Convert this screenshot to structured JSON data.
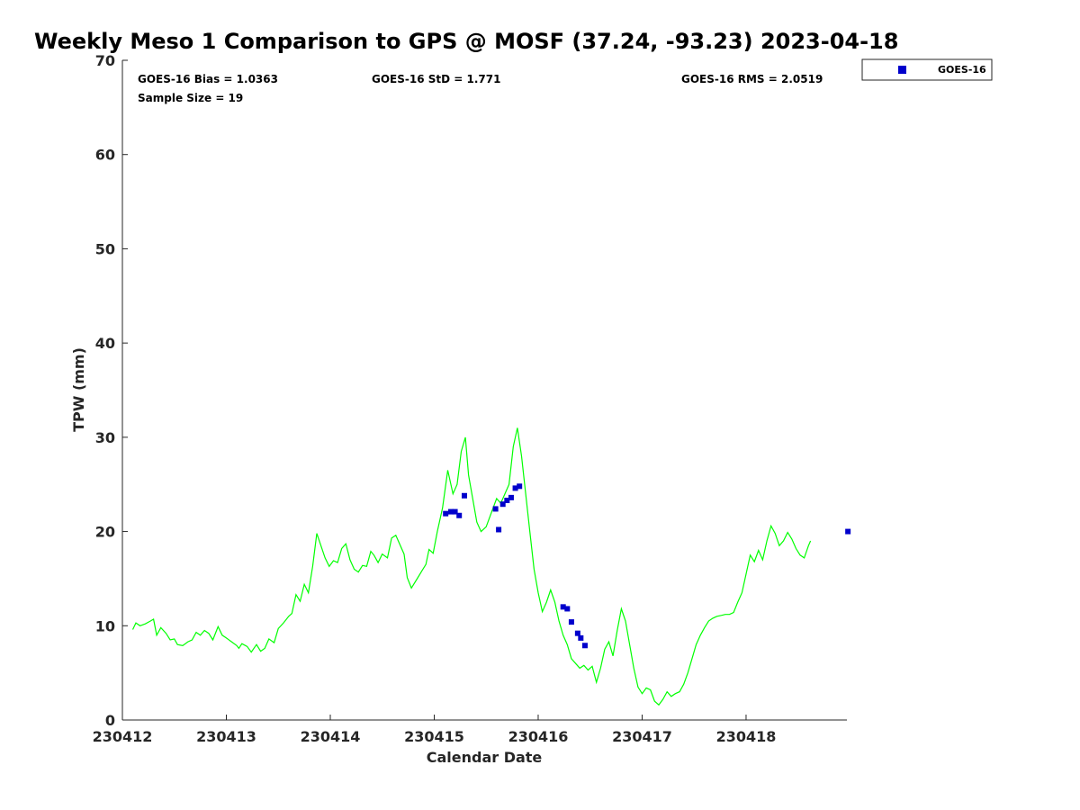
{
  "chart_data": {
    "type": "scatter",
    "title": "Weekly Meso 1 Comparison to GPS @ MOSF (37.24, -93.23) 2023-04-18",
    "xlabel": "Calendar Date",
    "ylabel": "TPW (mm)",
    "xlim": [
      0,
      6.97
    ],
    "ylim": [
      0,
      70
    ],
    "x_ticks": [
      {
        "value": 0,
        "label": "230412"
      },
      {
        "value": 1,
        "label": "230413"
      },
      {
        "value": 2,
        "label": "230414"
      },
      {
        "value": 3,
        "label": "230415"
      },
      {
        "value": 4,
        "label": "230416"
      },
      {
        "value": 5,
        "label": "230417"
      },
      {
        "value": 6,
        "label": "230418"
      }
    ],
    "y_ticks": [
      0,
      10,
      20,
      30,
      40,
      50,
      60,
      70
    ],
    "stats": {
      "bias": "GOES-16 Bias = 1.0363",
      "std": "GOES-16 StD = 1.771",
      "rms": "GOES-16 RMS = 2.0519",
      "sample_size": "Sample Size = 19"
    },
    "legend": {
      "position": "top-right",
      "entries": [
        "GOES-16"
      ]
    },
    "colors": {
      "gps_line": "#00ff00",
      "goes16_marker": "#0000cc"
    },
    "series": [
      {
        "kind": "line",
        "points": [
          [
            0.1,
            9.6
          ],
          [
            0.13,
            10.3
          ],
          [
            0.17,
            10.0
          ],
          [
            0.22,
            10.2
          ],
          [
            0.27,
            10.5
          ],
          [
            0.3,
            10.7
          ],
          [
            0.33,
            9.0
          ],
          [
            0.37,
            9.8
          ],
          [
            0.42,
            9.2
          ],
          [
            0.46,
            8.5
          ],
          [
            0.5,
            8.6
          ],
          [
            0.53,
            8.0
          ],
          [
            0.58,
            7.9
          ],
          [
            0.63,
            8.3
          ],
          [
            0.67,
            8.5
          ],
          [
            0.71,
            9.3
          ],
          [
            0.75,
            9.0
          ],
          [
            0.79,
            9.5
          ],
          [
            0.83,
            9.2
          ],
          [
            0.87,
            8.5
          ],
          [
            0.92,
            9.9
          ],
          [
            0.96,
            9.0
          ],
          [
            1.0,
            8.7
          ],
          [
            1.05,
            8.3
          ],
          [
            1.1,
            7.9
          ],
          [
            1.12,
            7.6
          ],
          [
            1.15,
            8.1
          ],
          [
            1.2,
            7.8
          ],
          [
            1.24,
            7.2
          ],
          [
            1.29,
            8.0
          ],
          [
            1.33,
            7.3
          ],
          [
            1.37,
            7.6
          ],
          [
            1.41,
            8.6
          ],
          [
            1.46,
            8.2
          ],
          [
            1.5,
            9.7
          ],
          [
            1.55,
            10.3
          ],
          [
            1.6,
            11.0
          ],
          [
            1.63,
            11.3
          ],
          [
            1.67,
            13.3
          ],
          [
            1.71,
            12.6
          ],
          [
            1.75,
            14.4
          ],
          [
            1.79,
            13.5
          ],
          [
            1.83,
            16.3
          ],
          [
            1.87,
            19.8
          ],
          [
            1.91,
            18.5
          ],
          [
            1.95,
            17.2
          ],
          [
            1.99,
            16.3
          ],
          [
            2.03,
            16.9
          ],
          [
            2.07,
            16.7
          ],
          [
            2.11,
            18.2
          ],
          [
            2.15,
            18.7
          ],
          [
            2.19,
            17.0
          ],
          [
            2.23,
            16.0
          ],
          [
            2.27,
            15.7
          ],
          [
            2.31,
            16.4
          ],
          [
            2.35,
            16.3
          ],
          [
            2.39,
            17.9
          ],
          [
            2.42,
            17.5
          ],
          [
            2.46,
            16.7
          ],
          [
            2.5,
            17.6
          ],
          [
            2.55,
            17.2
          ],
          [
            2.59,
            19.3
          ],
          [
            2.63,
            19.6
          ],
          [
            2.67,
            18.6
          ],
          [
            2.71,
            17.6
          ],
          [
            2.74,
            15.1
          ],
          [
            2.78,
            14.0
          ],
          [
            2.83,
            14.9
          ],
          [
            2.88,
            15.8
          ],
          [
            2.92,
            16.5
          ],
          [
            2.95,
            18.1
          ],
          [
            2.99,
            17.7
          ],
          [
            3.03,
            20.0
          ],
          [
            3.08,
            22.5
          ],
          [
            3.13,
            26.5
          ],
          [
            3.18,
            24.0
          ],
          [
            3.22,
            25.0
          ],
          [
            3.26,
            28.5
          ],
          [
            3.3,
            30.0
          ],
          [
            3.33,
            26.0
          ],
          [
            3.37,
            23.5
          ],
          [
            3.41,
            21.0
          ],
          [
            3.45,
            20.0
          ],
          [
            3.5,
            20.5
          ],
          [
            3.55,
            22.0
          ],
          [
            3.6,
            23.5
          ],
          [
            3.64,
            23.0
          ],
          [
            3.68,
            24.0
          ],
          [
            3.72,
            25.0
          ],
          [
            3.76,
            29.0
          ],
          [
            3.8,
            31.0
          ],
          [
            3.84,
            28.0
          ],
          [
            3.88,
            24.0
          ],
          [
            3.92,
            20.0
          ],
          [
            3.96,
            16.0
          ],
          [
            4.0,
            13.5
          ],
          [
            4.04,
            11.5
          ],
          [
            4.08,
            12.5
          ],
          [
            4.12,
            13.8
          ],
          [
            4.16,
            12.5
          ],
          [
            4.2,
            10.5
          ],
          [
            4.24,
            9.0
          ],
          [
            4.28,
            8.0
          ],
          [
            4.32,
            6.5
          ],
          [
            4.36,
            6.0
          ],
          [
            4.4,
            5.5
          ],
          [
            4.44,
            5.8
          ],
          [
            4.48,
            5.3
          ],
          [
            4.52,
            5.7
          ],
          [
            4.56,
            4.0
          ],
          [
            4.6,
            5.5
          ],
          [
            4.64,
            7.5
          ],
          [
            4.68,
            8.3
          ],
          [
            4.72,
            6.8
          ],
          [
            4.76,
            9.5
          ],
          [
            4.8,
            11.8
          ],
          [
            4.84,
            10.5
          ],
          [
            4.88,
            8.0
          ],
          [
            4.92,
            5.5
          ],
          [
            4.96,
            3.5
          ],
          [
            5.0,
            2.8
          ],
          [
            5.04,
            3.4
          ],
          [
            5.08,
            3.2
          ],
          [
            5.12,
            2.0
          ],
          [
            5.16,
            1.6
          ],
          [
            5.2,
            2.2
          ],
          [
            5.24,
            3.0
          ],
          [
            5.28,
            2.5
          ],
          [
            5.32,
            2.8
          ],
          [
            5.36,
            3.0
          ],
          [
            5.4,
            3.8
          ],
          [
            5.44,
            5.0
          ],
          [
            5.48,
            6.5
          ],
          [
            5.52,
            8.0
          ],
          [
            5.56,
            9.0
          ],
          [
            5.6,
            9.8
          ],
          [
            5.64,
            10.5
          ],
          [
            5.68,
            10.8
          ],
          [
            5.72,
            11.0
          ],
          [
            5.76,
            11.1
          ],
          [
            5.8,
            11.2
          ],
          [
            5.84,
            11.2
          ],
          [
            5.88,
            11.4
          ],
          [
            5.92,
            12.5
          ],
          [
            5.96,
            13.5
          ],
          [
            6.0,
            15.5
          ],
          [
            6.04,
            17.5
          ],
          [
            6.08,
            16.8
          ],
          [
            6.12,
            18.0
          ],
          [
            6.16,
            17.0
          ],
          [
            6.2,
            19.0
          ],
          [
            6.24,
            20.6
          ],
          [
            6.28,
            19.8
          ],
          [
            6.32,
            18.5
          ],
          [
            6.36,
            19.0
          ],
          [
            6.4,
            19.9
          ],
          [
            6.44,
            19.2
          ],
          [
            6.48,
            18.2
          ],
          [
            6.52,
            17.5
          ],
          [
            6.56,
            17.2
          ],
          [
            6.6,
            18.5
          ],
          [
            6.62,
            19.0
          ]
        ]
      },
      {
        "name": "GOES-16",
        "kind": "markers",
        "points": [
          [
            3.11,
            21.9
          ],
          [
            3.16,
            22.1
          ],
          [
            3.2,
            22.1
          ],
          [
            3.24,
            21.7
          ],
          [
            3.29,
            23.8
          ],
          [
            3.59,
            22.4
          ],
          [
            3.62,
            20.2
          ],
          [
            3.66,
            22.9
          ],
          [
            3.7,
            23.3
          ],
          [
            3.74,
            23.6
          ],
          [
            3.78,
            24.6
          ],
          [
            3.82,
            24.8
          ],
          [
            4.24,
            12.0
          ],
          [
            4.28,
            11.8
          ],
          [
            4.32,
            10.4
          ],
          [
            4.38,
            9.2
          ],
          [
            4.41,
            8.7
          ],
          [
            4.45,
            7.9
          ],
          [
            6.98,
            20.0
          ]
        ]
      }
    ]
  }
}
